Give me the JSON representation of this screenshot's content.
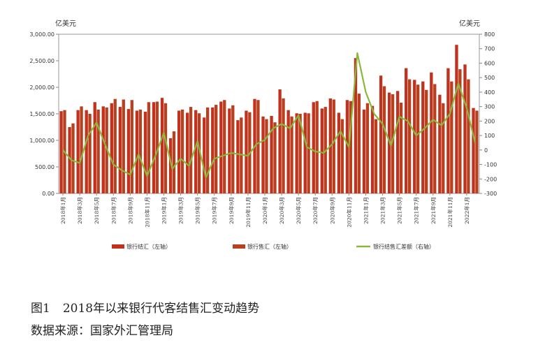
{
  "chart_data": {
    "type": "bar+line",
    "left_unit": "亿美元",
    "right_unit": "亿美元",
    "ylim_left": [
      0,
      3000
    ],
    "yticks_left": [
      "0.00",
      "500.00",
      "1,000.00",
      "1,500.00",
      "2,000.00",
      "2,500.00",
      "3,000.00"
    ],
    "ylim_right": [
      -300,
      800
    ],
    "yticks_right": [
      "-300",
      "-200",
      "-100",
      "0",
      "100",
      "200",
      "300",
      "400",
      "500",
      "600",
      "700",
      "800"
    ],
    "x_tick_labels": [
      "2018年1月",
      "2018年3月",
      "2018年5月",
      "2018年7月",
      "2018年9月",
      "2018年11月",
      "2019年1月",
      "2019年3月",
      "2019年5月",
      "2019年7月",
      "2019年9月",
      "2019年11月",
      "2020年1月",
      "2020年3月",
      "2020年5月",
      "2020年7月",
      "2020年9月",
      "2020年11月",
      "2021年1月",
      "2021年3月",
      "2021年5月",
      "2021年7月",
      "2021年9月",
      "2021年11月",
      "2022年1月"
    ],
    "legend": [
      "银行结汇（左轴）",
      "银行售汇（左轴）",
      "银行结售汇差额（右轴）"
    ],
    "series": [
      {
        "name": "银行结汇（左轴）",
        "axis": "left",
        "color": "#c0321e",
        "values": [
          1550,
          1250,
          1570,
          1570,
          1720,
          1640,
          1700,
          1630,
          1590,
          1560,
          1540,
          1720,
          1800,
          1040,
          1560,
          1520,
          1570,
          1430,
          1620,
          1730,
          1600,
          1380,
          1560,
          1780,
          1450,
          1460,
          1960,
          1570,
          1510,
          1520,
          1720,
          1600,
          1790,
          1520,
          1760,
          2550,
          1580,
          1650,
          2220,
          1900,
          1930,
          2360,
          2140,
          2110,
          2280,
          1860,
          2360,
          2800,
          2430,
          1610
        ]
      },
      {
        "name": "银行售汇（左轴）",
        "axis": "left",
        "color": "#b8401e",
        "values": [
          1570,
          1320,
          1640,
          1500,
          1580,
          1620,
          1780,
          1770,
          1760,
          1580,
          1720,
          1730,
          1700,
          1170,
          1580,
          1630,
          1510,
          1620,
          1670,
          1760,
          1660,
          1430,
          1530,
          1760,
          1400,
          1340,
          1790,
          1450,
          1500,
          1510,
          1740,
          1630,
          1770,
          1400,
          1740,
          1880,
          1700,
          1400,
          2020,
          1870,
          1710,
          2150,
          2050,
          1950,
          2060,
          1700,
          2110,
          2340,
          2150,
          1560
        ]
      },
      {
        "name": "银行结售汇差额（右轴）",
        "axis": "right",
        "color": "#8ab83a",
        "values": [
          0,
          -70,
          -90,
          100,
          190,
          40,
          -100,
          -140,
          -170,
          -30,
          -180,
          -40,
          120,
          -130,
          -60,
          -110,
          60,
          -190,
          -60,
          -40,
          -20,
          -30,
          -40,
          40,
          70,
          150,
          180,
          150,
          240,
          20,
          -10,
          -20,
          40,
          130,
          20,
          670,
          400,
          250,
          180,
          30,
          230,
          200,
          100,
          150,
          210,
          170,
          250,
          460,
          290,
          50
        ]
      }
    ]
  },
  "caption": {
    "figure_no": "图1",
    "title": "2018年以来银行代客结售汇变动趋势",
    "source": "数据来源：国家外汇管理局"
  }
}
